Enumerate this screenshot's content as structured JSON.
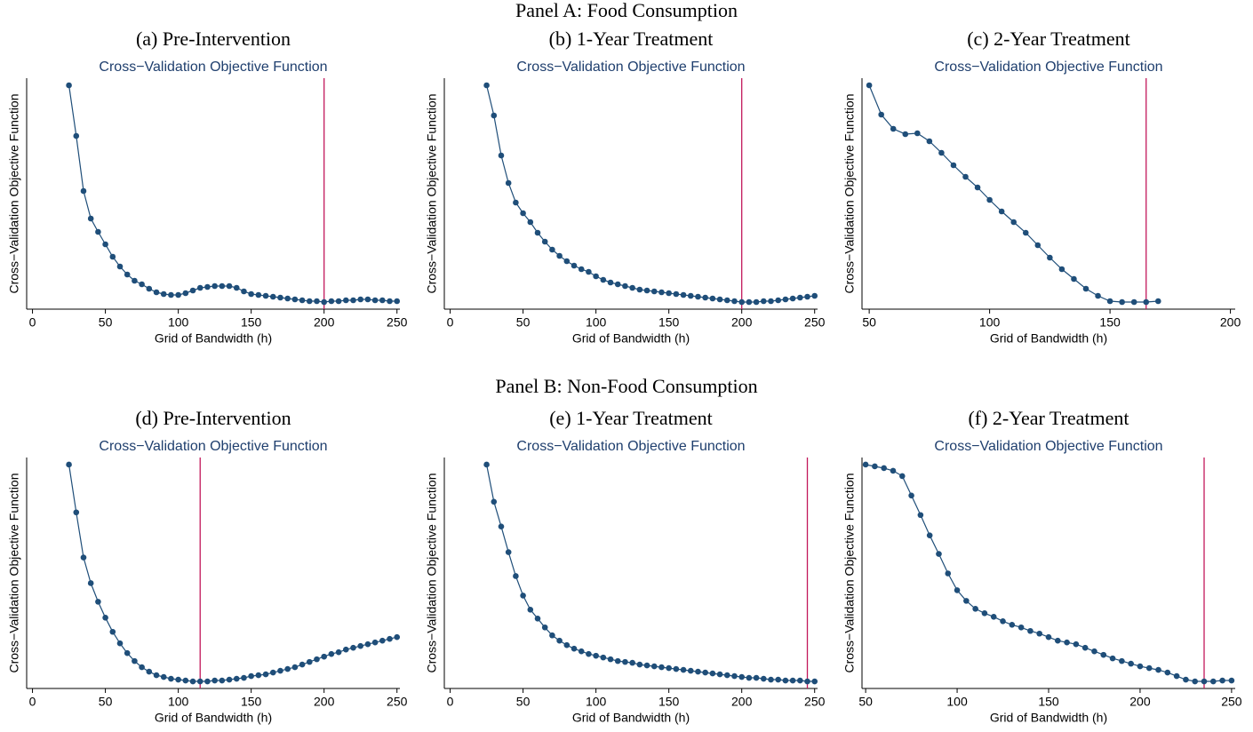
{
  "panel_titles": [
    "Panel A: Food Consumption",
    "Panel B: Non-Food Consumption"
  ],
  "chart_data": [
    {
      "type": "line",
      "title": "(a) Pre-Intervention",
      "subtitle": "Cross−Validation Objective Function",
      "ylabel": "Cross−Validation Objective Function",
      "xlabel": "Grid of Bandwidth (h)",
      "x": [
        25,
        30,
        35,
        40,
        45,
        50,
        55,
        60,
        65,
        70,
        75,
        80,
        85,
        90,
        95,
        100,
        105,
        110,
        115,
        120,
        125,
        130,
        135,
        140,
        145,
        150,
        155,
        160,
        165,
        170,
        175,
        180,
        185,
        190,
        195,
        200,
        205,
        210,
        215,
        220,
        225,
        230,
        235,
        240,
        245,
        250
      ],
      "values": [
        244,
        187,
        125,
        94,
        79,
        65,
        51,
        40,
        31,
        24,
        20,
        15,
        11,
        9,
        8,
        8,
        10,
        13,
        16,
        17,
        18,
        18,
        18,
        16,
        12,
        9,
        8,
        7,
        6,
        5,
        4,
        3,
        2,
        1,
        1,
        0,
        1,
        1,
        2,
        2,
        3,
        3,
        2,
        2,
        1,
        1
      ],
      "color": "#1f4e79",
      "vline": 200,
      "vline_color": "#c2185b",
      "xlim": [
        -4,
        252
      ],
      "xticks": [
        0,
        50,
        100,
        150,
        200,
        250
      ],
      "ylim": [
        -8,
        252
      ]
    },
    {
      "type": "line",
      "title": "(b) 1-Year Treatment",
      "subtitle": "Cross−Validation Objective Function",
      "ylabel": "Cross−Validation Objective Function",
      "xlabel": "Grid of Bandwidth (h)",
      "x": [
        25,
        30,
        35,
        40,
        45,
        50,
        55,
        60,
        65,
        70,
        75,
        80,
        85,
        90,
        95,
        100,
        105,
        110,
        115,
        120,
        125,
        130,
        135,
        140,
        145,
        150,
        155,
        160,
        165,
        170,
        175,
        180,
        185,
        190,
        195,
        200,
        205,
        210,
        215,
        220,
        225,
        230,
        235,
        240,
        245,
        250
      ],
      "values": [
        244,
        210,
        165,
        134,
        112,
        100,
        90,
        78,
        68,
        59,
        52,
        46,
        41,
        37,
        34,
        29,
        25,
        22,
        20,
        18,
        16,
        14,
        13,
        12,
        11,
        10,
        9,
        8,
        7,
        6,
        5,
        4,
        3,
        2,
        1,
        0,
        0,
        0,
        1,
        1,
        2,
        3,
        4,
        5,
        6,
        7
      ],
      "color": "#1f4e79",
      "vline": 200,
      "vline_color": "#c2185b",
      "xlim": [
        -4,
        252
      ],
      "xticks": [
        0,
        50,
        100,
        150,
        200,
        250
      ],
      "ylim": [
        -8,
        252
      ]
    },
    {
      "type": "line",
      "title": "(c) 2-Year Treatment",
      "subtitle": "Cross−Validation Objective Function",
      "ylabel": "Cross−Validation Objective Function",
      "xlabel": "Grid of Bandwidth (h)",
      "x": [
        50,
        55,
        60,
        65,
        70,
        75,
        80,
        85,
        90,
        95,
        100,
        105,
        110,
        115,
        120,
        125,
        130,
        135,
        140,
        145,
        150,
        155,
        160,
        165,
        170
      ],
      "values": [
        244,
        211,
        195,
        189,
        190,
        181,
        168,
        154,
        141,
        129,
        115,
        102,
        90,
        78,
        64,
        50,
        37,
        26,
        15,
        7,
        1,
        0,
        0,
        0,
        1
      ],
      "color": "#1f4e79",
      "vline": 165,
      "vline_color": "#c2185b",
      "xlim": [
        47,
        202
      ],
      "xticks": [
        50,
        100,
        150,
        200
      ],
      "ylim": [
        -8,
        252
      ]
    },
    {
      "type": "line",
      "title": "(d) Pre-Intervention",
      "subtitle": "Cross−Validation Objective Function",
      "ylabel": "Cross−Validation Objective Function",
      "xlabel": "Grid of Bandwidth (h)",
      "x": [
        25,
        30,
        35,
        40,
        45,
        50,
        55,
        60,
        65,
        70,
        75,
        80,
        85,
        90,
        95,
        100,
        105,
        110,
        115,
        120,
        125,
        130,
        135,
        140,
        145,
        150,
        155,
        160,
        165,
        170,
        175,
        180,
        185,
        190,
        195,
        200,
        205,
        210,
        215,
        220,
        225,
        230,
        235,
        240,
        245,
        250
      ],
      "values": [
        245,
        191,
        140,
        111,
        90,
        72,
        56,
        43,
        32,
        23,
        16,
        11,
        7,
        5,
        3,
        2,
        1,
        0,
        0,
        0,
        1,
        1,
        2,
        3,
        4,
        6,
        7,
        8,
        10,
        12,
        14,
        16,
        19,
        22,
        25,
        28,
        31,
        33,
        36,
        38,
        40,
        42,
        44,
        46,
        48,
        50
      ],
      "color": "#1f4e79",
      "vline": 115,
      "vline_color": "#c2185b",
      "xlim": [
        -4,
        252
      ],
      "xticks": [
        0,
        50,
        100,
        150,
        200,
        250
      ],
      "ylim": [
        -8,
        253
      ]
    },
    {
      "type": "line",
      "title": "(e) 1-Year Treatment",
      "subtitle": "Cross−Validation Objective Function",
      "ylabel": "Cross−Validation Objective Function",
      "xlabel": "Grid of Bandwidth (h)",
      "x": [
        25,
        30,
        35,
        40,
        45,
        50,
        55,
        60,
        65,
        70,
        75,
        80,
        85,
        90,
        95,
        100,
        105,
        110,
        115,
        120,
        125,
        130,
        135,
        140,
        145,
        150,
        155,
        160,
        165,
        170,
        175,
        180,
        185,
        190,
        195,
        200,
        205,
        210,
        215,
        220,
        225,
        230,
        235,
        240,
        245,
        250
      ],
      "values": [
        245,
        203,
        175,
        146,
        119,
        97,
        81,
        71,
        61,
        52,
        46,
        41,
        37,
        34,
        31,
        29,
        27,
        25,
        23,
        22,
        21,
        19,
        18,
        17,
        16,
        15,
        14,
        13,
        12,
        11,
        10,
        9,
        8,
        7,
        6,
        5,
        4,
        4,
        3,
        2,
        2,
        1,
        1,
        1,
        0,
        0
      ],
      "color": "#1f4e79",
      "vline": 245,
      "vline_color": "#c2185b",
      "xlim": [
        -4,
        252
      ],
      "xticks": [
        0,
        50,
        100,
        150,
        200,
        250
      ],
      "ylim": [
        -8,
        253
      ]
    },
    {
      "type": "line",
      "title": "(f) 2-Year Treatment",
      "subtitle": "Cross−Validation Objective Function",
      "ylabel": "Cross−Validation Objective Function",
      "xlabel": "Grid of Bandwidth (h)",
      "x": [
        50,
        55,
        60,
        65,
        70,
        75,
        80,
        85,
        90,
        95,
        100,
        105,
        110,
        115,
        120,
        125,
        130,
        135,
        140,
        145,
        150,
        155,
        160,
        165,
        170,
        175,
        180,
        185,
        190,
        195,
        200,
        205,
        210,
        215,
        220,
        225,
        230,
        235,
        240,
        245,
        250
      ],
      "values": [
        245,
        243,
        241,
        238,
        232,
        210,
        188,
        165,
        144,
        122,
        103,
        91,
        82,
        77,
        73,
        68,
        64,
        61,
        57,
        54,
        50,
        46,
        44,
        42,
        38,
        34,
        30,
        26,
        23,
        20,
        17,
        15,
        13,
        10,
        6,
        2,
        0,
        0,
        0,
        1,
        1
      ],
      "color": "#1f4e79",
      "vline": 235,
      "vline_color": "#c2185b",
      "xlim": [
        48,
        252
      ],
      "xticks": [
        50,
        100,
        150,
        200,
        250
      ],
      "ylim": [
        -8,
        253
      ]
    }
  ]
}
